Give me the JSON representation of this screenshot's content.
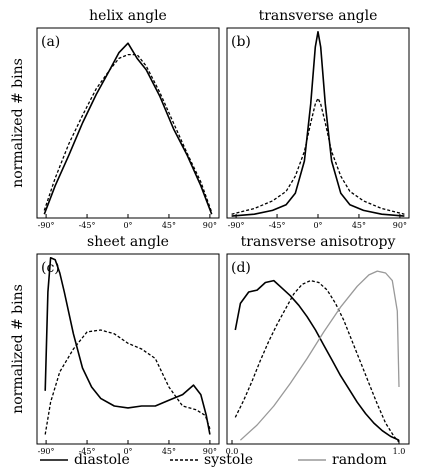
{
  "y_axis_label": "normalized # bins",
  "legend": [
    {
      "label": "diastole",
      "color": "#000000",
      "style": "solid"
    },
    {
      "label": "systole",
      "color": "#000000",
      "style": "dashed"
    },
    {
      "label": "random",
      "color": "#999999",
      "style": "solid"
    }
  ],
  "chart_data": [
    {
      "panel": "(a)",
      "type": "line",
      "title": "helix angle",
      "ylabel": "normalized # bins",
      "xlim": [
        -100,
        100
      ],
      "ylim": [
        0,
        1
      ],
      "xticks": [
        -90,
        -45,
        0,
        45,
        90
      ],
      "xtick_labels": [
        "-90°",
        "-45°",
        "0°",
        "45°",
        "90°"
      ],
      "series": [
        {
          "name": "diastole",
          "style": "solid",
          "color": "#000000",
          "x": [
            -92,
            -80,
            -65,
            -50,
            -35,
            -20,
            -10,
            0,
            5,
            10,
            20,
            35,
            50,
            65,
            80,
            92
          ],
          "y": [
            0.02,
            0.17,
            0.33,
            0.5,
            0.65,
            0.78,
            0.87,
            0.92,
            0.88,
            0.84,
            0.78,
            0.64,
            0.47,
            0.33,
            0.17,
            0.02
          ]
        },
        {
          "name": "systole",
          "style": "dashed",
          "color": "#000000",
          "x": [
            -92,
            -80,
            -65,
            -50,
            -35,
            -20,
            -10,
            0,
            10,
            20,
            35,
            50,
            65,
            80,
            92
          ],
          "y": [
            0.04,
            0.21,
            0.39,
            0.54,
            0.68,
            0.78,
            0.84,
            0.86,
            0.86,
            0.8,
            0.66,
            0.5,
            0.34,
            0.19,
            0.03
          ]
        }
      ]
    },
    {
      "panel": "(b)",
      "type": "line",
      "title": "transverse angle",
      "ylabel": "",
      "xlim": [
        -100,
        100
      ],
      "ylim": [
        0,
        1
      ],
      "xticks": [
        -90,
        -45,
        0,
        45,
        90
      ],
      "xtick_labels": [
        "-90°",
        "-45°",
        "0°",
        "45°",
        "90°"
      ],
      "series": [
        {
          "name": "diastole",
          "style": "solid",
          "color": "#000000",
          "x": [
            -95,
            -70,
            -50,
            -35,
            -25,
            -15,
            -8,
            -3,
            0,
            3,
            8,
            15,
            25,
            35,
            50,
            70,
            95
          ],
          "y": [
            0.01,
            0.02,
            0.04,
            0.07,
            0.13,
            0.3,
            0.6,
            0.9,
            0.98,
            0.9,
            0.6,
            0.3,
            0.13,
            0.07,
            0.04,
            0.02,
            0.01
          ]
        },
        {
          "name": "systole",
          "style": "dashed",
          "color": "#000000",
          "x": [
            -95,
            -70,
            -50,
            -35,
            -25,
            -15,
            -8,
            -3,
            0,
            3,
            8,
            15,
            25,
            35,
            50,
            70,
            95
          ],
          "y": [
            0.02,
            0.05,
            0.09,
            0.14,
            0.22,
            0.35,
            0.5,
            0.6,
            0.63,
            0.6,
            0.5,
            0.35,
            0.22,
            0.14,
            0.09,
            0.05,
            0.02
          ]
        }
      ]
    },
    {
      "panel": "(c)",
      "type": "line",
      "title": "sheet angle",
      "ylabel": "normalized # bins",
      "xlim": [
        -100,
        100
      ],
      "ylim": [
        0,
        1
      ],
      "xticks": [
        -90,
        -45,
        0,
        45,
        90
      ],
      "xtick_labels": [
        "-90°",
        "-45°",
        "0°",
        "45°",
        "90°"
      ],
      "series": [
        {
          "name": "diastole",
          "style": "solid",
          "color": "#000000",
          "x": [
            -91,
            -88,
            -85,
            -80,
            -75,
            -70,
            -60,
            -50,
            -40,
            -30,
            -15,
            0,
            15,
            30,
            45,
            60,
            72,
            80,
            86,
            90
          ],
          "y": [
            0.28,
            0.8,
            0.98,
            0.97,
            0.9,
            0.8,
            0.58,
            0.4,
            0.3,
            0.24,
            0.2,
            0.19,
            0.2,
            0.2,
            0.23,
            0.26,
            0.31,
            0.26,
            0.15,
            0.05
          ]
        },
        {
          "name": "systole",
          "style": "dashed",
          "color": "#000000",
          "x": [
            -91,
            -85,
            -75,
            -60,
            -45,
            -30,
            -15,
            0,
            15,
            30,
            45,
            60,
            75,
            85,
            90
          ],
          "y": [
            0.05,
            0.22,
            0.38,
            0.5,
            0.59,
            0.6,
            0.58,
            0.53,
            0.5,
            0.45,
            0.3,
            0.2,
            0.18,
            0.15,
            0.08
          ]
        }
      ]
    },
    {
      "panel": "(d)",
      "type": "line",
      "title": "transverse anisotropy",
      "ylabel": "",
      "xlim": [
        -0.03,
        1.06
      ],
      "ylim": [
        0,
        1
      ],
      "xticks": [
        0.0,
        1.0
      ],
      "xtick_labels": [
        "0.0",
        "1.0"
      ],
      "series": [
        {
          "name": "diastole",
          "style": "solid",
          "color": "#000000",
          "x": [
            0.02,
            0.05,
            0.1,
            0.15,
            0.2,
            0.25,
            0.3,
            0.35,
            0.4,
            0.45,
            0.5,
            0.55,
            0.6,
            0.65,
            0.7,
            0.75,
            0.8,
            0.85,
            0.9,
            0.95,
            1.0
          ],
          "y": [
            0.6,
            0.74,
            0.8,
            0.81,
            0.85,
            0.86,
            0.82,
            0.78,
            0.73,
            0.67,
            0.6,
            0.52,
            0.44,
            0.36,
            0.29,
            0.22,
            0.16,
            0.11,
            0.07,
            0.04,
            0.02
          ]
        },
        {
          "name": "systole",
          "style": "dashed",
          "color": "#000000",
          "x": [
            0.02,
            0.07,
            0.12,
            0.17,
            0.22,
            0.27,
            0.32,
            0.37,
            0.42,
            0.47,
            0.52,
            0.57,
            0.62,
            0.67,
            0.72,
            0.77,
            0.82,
            0.87,
            0.92,
            0.97,
            1.0
          ],
          "y": [
            0.14,
            0.23,
            0.33,
            0.44,
            0.54,
            0.63,
            0.71,
            0.79,
            0.84,
            0.86,
            0.85,
            0.81,
            0.74,
            0.65,
            0.54,
            0.43,
            0.32,
            0.21,
            0.11,
            0.04,
            0.01
          ]
        },
        {
          "name": "random",
          "style": "solid",
          "color": "#999999",
          "x": [
            0.05,
            0.15,
            0.25,
            0.35,
            0.45,
            0.55,
            0.65,
            0.75,
            0.82,
            0.87,
            0.92,
            0.96,
            0.99,
            1.0
          ],
          "y": [
            0.02,
            0.1,
            0.2,
            0.32,
            0.45,
            0.59,
            0.72,
            0.83,
            0.89,
            0.91,
            0.9,
            0.86,
            0.7,
            0.3
          ]
        }
      ]
    }
  ]
}
